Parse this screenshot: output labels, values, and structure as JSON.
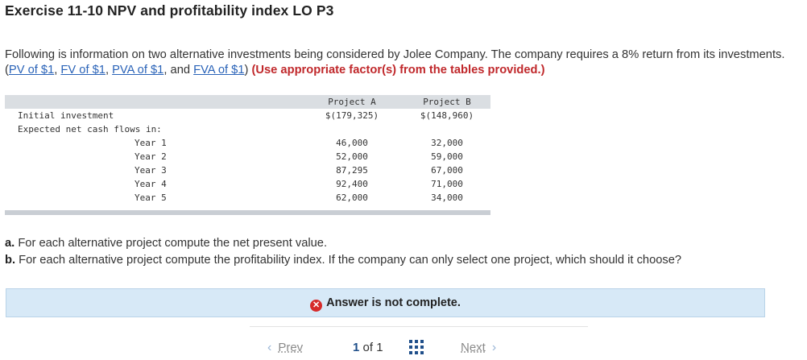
{
  "title": "Exercise 11-10 NPV and profitability index LO P3",
  "intro": {
    "text_before": "Following is information on two alternative investments being considered by Jolee Company. The company requires a 8% return from its investments. (",
    "links": [
      "PV of $1",
      "FV of $1",
      "PVA of $1",
      "FVA of $1"
    ],
    "sep1": ", ",
    "sep2": ", ",
    "sep3": ", and ",
    "close": ") ",
    "emphasis": "(Use appropriate factor(s) from the tables provided.)"
  },
  "table": {
    "col_a": "Project A",
    "col_b": "Project B",
    "initial_label": "Initial investment",
    "initial_a": "$(179,325)",
    "initial_b": "$(148,960)",
    "flows_label": "Expected net cash flows in:",
    "rows": [
      {
        "label": "Year 1",
        "a": "46,000",
        "b": "32,000"
      },
      {
        "label": "Year 2",
        "a": "52,000",
        "b": "59,000"
      },
      {
        "label": "Year 3",
        "a": "87,295",
        "b": "67,000"
      },
      {
        "label": "Year 4",
        "a": "92,400",
        "b": "71,000"
      },
      {
        "label": "Year 5",
        "a": "62,000",
        "b": "34,000"
      }
    ]
  },
  "questions": {
    "a_prefix": "a.",
    "a_text": " For each alternative project compute the net present value.",
    "b_prefix": "b.",
    "b_text": " For each alternative project compute the profitability index. If the company can only select one project, which should it choose?"
  },
  "answer_status": "Answer is not complete.",
  "icons": {
    "status": "x-circle-icon",
    "grid": "grid-icon",
    "prev": "chevron-left-icon",
    "next": "chevron-right-icon"
  },
  "colors": {
    "link": "#2a63b8",
    "emphasis": "#c0282b",
    "answer_bg": "#d7e9f7",
    "error": "#d62b2b"
  },
  "nav": {
    "prev": "Prev",
    "next": "Next",
    "current": "1",
    "of_text": "of 1"
  }
}
